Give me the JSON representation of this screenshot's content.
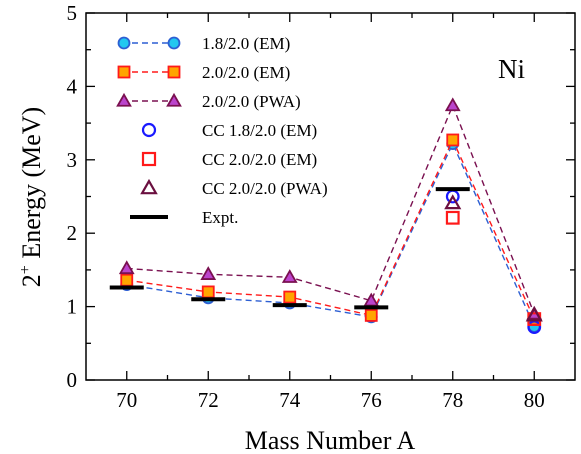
{
  "chart_data": {
    "type": "scatter",
    "xlabel": "Mass Number A",
    "ylabel_base": "2",
    "ylabel_sup": "+",
    "ylabel_rest": " Energy (MeV)",
    "xlim": [
      69,
      81
    ],
    "ylim": [
      0,
      5
    ],
    "xticks": [
      70,
      72,
      74,
      76,
      78,
      80
    ],
    "yticks": [
      0,
      1,
      2,
      3,
      4,
      5
    ],
    "grid": false,
    "legend_position": "upper-left",
    "annotation": "Ni",
    "series": [
      {
        "name": "1.8/2.0 (EM)",
        "style": "dashed-line-marker",
        "marker": "circle",
        "line_color": "#2d5fd3",
        "marker_fill": "#22c8f0",
        "marker_edge": "#2d5fd3",
        "x": [
          70,
          72,
          74,
          76,
          78,
          80
        ],
        "y": [
          1.3,
          1.12,
          1.05,
          0.86,
          3.22,
          0.73
        ]
      },
      {
        "name": "2.0/2.0 (EM)",
        "style": "dashed-line-marker",
        "marker": "square",
        "line_color": "#ff1a1a",
        "marker_fill": "#ffa500",
        "marker_edge": "#ff1a1a",
        "x": [
          70,
          72,
          74,
          76,
          78,
          80
        ],
        "y": [
          1.36,
          1.2,
          1.13,
          0.88,
          3.27,
          0.83
        ]
      },
      {
        "name": "2.0/2.0 (PWA)",
        "style": "dashed-line-marker",
        "marker": "triangle",
        "line_color": "#7a1050",
        "marker_fill": "#bb44cc",
        "marker_edge": "#7a1050",
        "x": [
          70,
          72,
          74,
          76,
          78,
          80
        ],
        "y": [
          1.52,
          1.44,
          1.4,
          1.08,
          3.74,
          0.9
        ]
      },
      {
        "name": "CC 1.8/2.0 (EM)",
        "style": "open-marker",
        "marker": "circle",
        "marker_edge": "#1a1aff",
        "x": [
          78,
          80
        ],
        "y": [
          2.5,
          0.72
        ]
      },
      {
        "name": "CC 2.0/2.0 (EM)",
        "style": "open-marker",
        "marker": "square",
        "marker_edge": "#ff1a1a",
        "x": [
          78,
          80
        ],
        "y": [
          2.21,
          0.83
        ]
      },
      {
        "name": "CC 2.0/2.0 (PWA)",
        "style": "open-marker",
        "marker": "triangle",
        "marker_edge": "#6b1040",
        "x": [
          78,
          80
        ],
        "y": [
          2.41,
          0.88
        ]
      },
      {
        "name": "Expt.",
        "style": "bar",
        "color": "#000000",
        "x": [
          70,
          72,
          74,
          76,
          78
        ],
        "y": [
          1.26,
          1.1,
          1.02,
          0.99,
          2.6
        ]
      }
    ]
  }
}
